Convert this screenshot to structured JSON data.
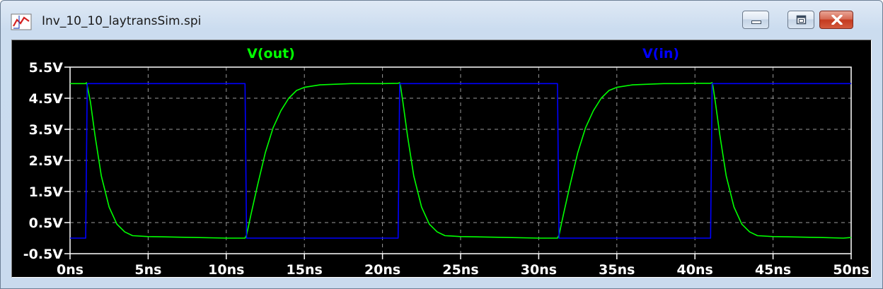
{
  "window": {
    "title": "Inv_10_10_laytransSim.spi",
    "controls": {
      "minimize": "minimize",
      "maximize": "maximize",
      "close": "close"
    }
  },
  "colors": {
    "out": "#00ff00",
    "in": "#0000ff",
    "grid": "#9a9a9a",
    "background": "#000000"
  },
  "icons": {
    "app": "waveform-chart-icon",
    "minimize": "minimize-icon",
    "maximize": "maximize-icon",
    "close": "close-icon"
  },
  "chart_data": {
    "type": "line",
    "series": [
      {
        "name": "V(out)",
        "color": "#00ff00",
        "x": [
          0,
          1.0,
          1.05,
          1.1,
          1.3,
          1.6,
          2.0,
          2.5,
          3.0,
          3.5,
          4.0,
          5.0,
          6.0,
          8.0,
          10.0,
          11.2,
          11.3,
          11.6,
          12.0,
          12.5,
          13.0,
          13.5,
          14.0,
          14.5,
          15.0,
          16.0,
          17.0,
          18.0,
          19.0,
          20.0,
          21.0,
          21.1,
          21.15,
          21.3,
          21.6,
          22.0,
          22.5,
          23.0,
          23.5,
          24.0,
          25.0,
          26.0,
          28.0,
          30.0,
          31.2,
          31.3,
          31.6,
          32.0,
          32.5,
          33.0,
          33.5,
          34.0,
          34.5,
          35.0,
          36.0,
          37.0,
          38.0,
          39.0,
          40.0,
          41.0,
          41.1,
          41.15,
          41.3,
          41.6,
          42.0,
          42.5,
          43.0,
          43.5,
          44.0,
          45.0,
          46.0,
          48.0,
          49.5,
          50.0
        ],
        "y": [
          4.97,
          4.97,
          5.0,
          4.9,
          4.4,
          3.3,
          2.0,
          1.0,
          0.45,
          0.2,
          0.08,
          0.05,
          0.04,
          0.02,
          0.0,
          0.0,
          0.1,
          0.8,
          1.7,
          2.75,
          3.55,
          4.1,
          4.5,
          4.75,
          4.85,
          4.93,
          4.95,
          4.97,
          4.97,
          4.97,
          4.98,
          5.0,
          4.9,
          4.4,
          3.3,
          2.0,
          1.0,
          0.45,
          0.2,
          0.08,
          0.05,
          0.04,
          0.02,
          0.0,
          0.0,
          0.1,
          0.8,
          1.7,
          2.75,
          3.55,
          4.1,
          4.5,
          4.75,
          4.85,
          4.93,
          4.95,
          4.97,
          4.97,
          4.98,
          4.98,
          5.0,
          4.9,
          4.4,
          3.3,
          2.0,
          1.0,
          0.45,
          0.2,
          0.08,
          0.05,
          0.04,
          0.02,
          0.0,
          0.02
        ]
      },
      {
        "name": "V(in)",
        "color": "#0000ff",
        "x": [
          0,
          1.0,
          1.1,
          11.2,
          11.3,
          21.0,
          21.1,
          31.2,
          31.3,
          41.0,
          41.1,
          50.0
        ],
        "y": [
          0.0,
          0.0,
          4.97,
          4.97,
          0.0,
          0.0,
          4.97,
          4.97,
          0.0,
          0.0,
          4.97,
          4.97
        ]
      }
    ],
    "xlim": [
      0,
      50
    ],
    "ylim": [
      -0.5,
      5.5
    ],
    "xticks": [
      0,
      5,
      10,
      15,
      20,
      25,
      30,
      35,
      40,
      45,
      50
    ],
    "yticks": [
      5.5,
      4.5,
      3.5,
      2.5,
      1.5,
      0.5,
      -0.5
    ],
    "xtick_labels": [
      "0ns",
      "5ns",
      "10ns",
      "15ns",
      "20ns",
      "25ns",
      "30ns",
      "35ns",
      "40ns",
      "45ns",
      "50ns"
    ],
    "ytick_labels": [
      "5.5V",
      "4.5V",
      "3.5V",
      "2.5V",
      "1.5V",
      "0.5V",
      "-0.5V"
    ],
    "grid": true
  }
}
